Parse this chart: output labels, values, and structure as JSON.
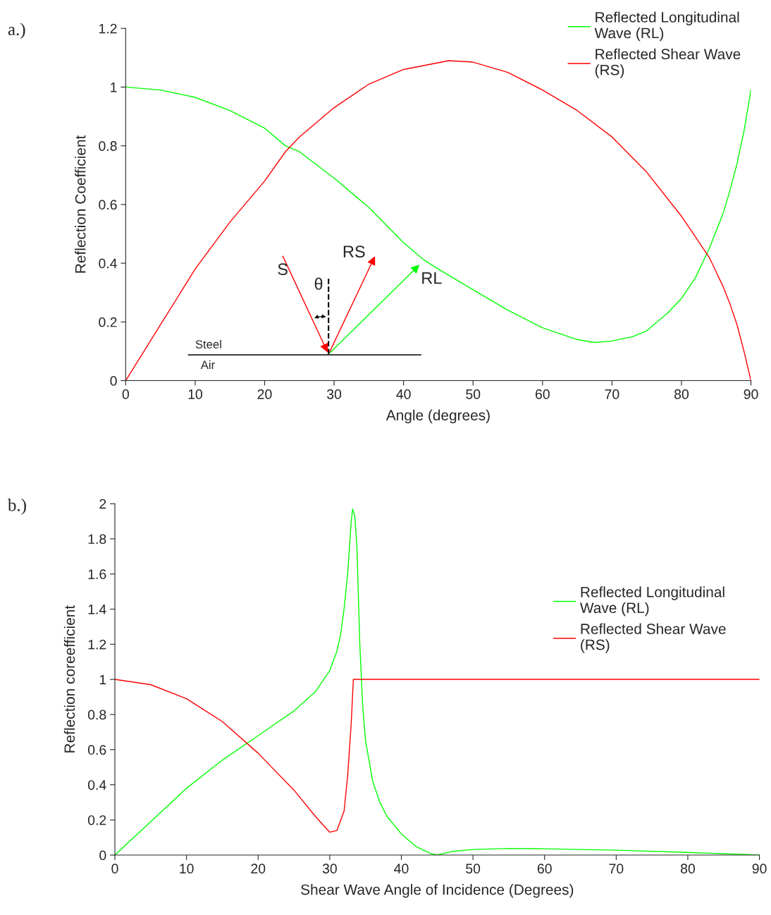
{
  "chart_data": [
    {
      "type": "line",
      "title": "a.)",
      "xlabel": "Angle (degrees)",
      "ylabel": "Reflection Coefficient",
      "xlim": [
        0,
        90
      ],
      "ylim": [
        0,
        1.2
      ],
      "xticks": [
        0,
        10,
        20,
        30,
        40,
        50,
        60,
        70,
        80,
        90
      ],
      "yticks": [
        0,
        0.2,
        0.4,
        0.6,
        0.8,
        1,
        1.2
      ],
      "grid": false,
      "legend": "top right",
      "marker": "none",
      "line_style": "solid",
      "annotations": [
        "S",
        "θ",
        "RS",
        "RL",
        "Steel",
        "Air"
      ],
      "series": [
        {
          "name": "Reflected Longitudinal Wave (RL)",
          "color": "#00ff00",
          "x": [
            0,
            5,
            10,
            15,
            20,
            23,
            25,
            30,
            35,
            40,
            43,
            45,
            50,
            55,
            60,
            65,
            67.5,
            70,
            73,
            75,
            78,
            80,
            82,
            84,
            86,
            87,
            88,
            89,
            90
          ],
          "values": [
            1,
            0.99,
            0.965,
            0.92,
            0.86,
            0.8,
            0.78,
            0.69,
            0.59,
            0.47,
            0.41,
            0.38,
            0.31,
            0.24,
            0.18,
            0.14,
            0.13,
            0.135,
            0.15,
            0.17,
            0.23,
            0.28,
            0.35,
            0.45,
            0.57,
            0.65,
            0.74,
            0.85,
            0.99
          ]
        },
        {
          "name": "Reflected Shear Wave (RS)",
          "color": "#ff0000",
          "x": [
            0,
            5,
            10,
            15,
            20,
            23,
            25,
            30,
            35,
            40,
            46.5,
            50,
            55,
            60,
            65,
            70,
            75,
            80,
            82,
            84,
            86,
            87,
            88,
            89,
            90
          ],
          "values": [
            0,
            0.19,
            0.38,
            0.54,
            0.68,
            0.78,
            0.83,
            0.93,
            1.01,
            1.06,
            1.09,
            1.085,
            1.05,
            0.99,
            0.92,
            0.83,
            0.71,
            0.56,
            0.49,
            0.42,
            0.32,
            0.26,
            0.19,
            0.1,
            0
          ]
        }
      ]
    },
    {
      "type": "line",
      "title": "b.)",
      "xlabel": "Shear Wave Angle of Incidence (Degrees)",
      "ylabel": "Reflection coreefficient",
      "xlim": [
        0,
        90
      ],
      "ylim": [
        0,
        2
      ],
      "xticks": [
        0,
        10,
        20,
        30,
        40,
        50,
        60,
        70,
        80,
        90
      ],
      "yticks": [
        0,
        0.2,
        0.4,
        0.6,
        0.8,
        1,
        1.2,
        1.4,
        1.6,
        1.8,
        2
      ],
      "grid": false,
      "legend": "right",
      "marker": "none",
      "line_style": "solid",
      "series": [
        {
          "name": "Reflected Longitudinal Wave (RL)",
          "color": "#00ff00",
          "x": [
            0,
            5,
            10,
            15,
            20,
            25,
            28,
            30,
            31,
            31.5,
            32,
            32.5,
            33,
            33.2,
            33.5,
            33.8,
            34.2,
            34.6,
            35,
            36,
            37,
            38,
            40,
            42,
            44,
            45,
            47,
            50,
            55,
            60,
            70,
            80,
            90
          ],
          "values": [
            0,
            0.19,
            0.38,
            0.54,
            0.68,
            0.82,
            0.93,
            1.05,
            1.16,
            1.25,
            1.4,
            1.6,
            1.9,
            1.97,
            1.93,
            1.75,
            1.2,
            0.85,
            0.65,
            0.42,
            0.3,
            0.22,
            0.12,
            0.05,
            0.01,
            0,
            0.02,
            0.032,
            0.038,
            0.036,
            0.028,
            0.015,
            0
          ]
        },
        {
          "name": "Reflected Shear Wave (RS)",
          "color": "#ff0000",
          "x": [
            0,
            5,
            10,
            15,
            20,
            25,
            28,
            30,
            31,
            32,
            32.5,
            33,
            33.3,
            35,
            50,
            70,
            90
          ],
          "values": [
            1,
            0.97,
            0.89,
            0.76,
            0.58,
            0.37,
            0.22,
            0.13,
            0.14,
            0.25,
            0.45,
            0.75,
            1,
            1,
            1,
            1,
            1
          ]
        }
      ]
    }
  ]
}
